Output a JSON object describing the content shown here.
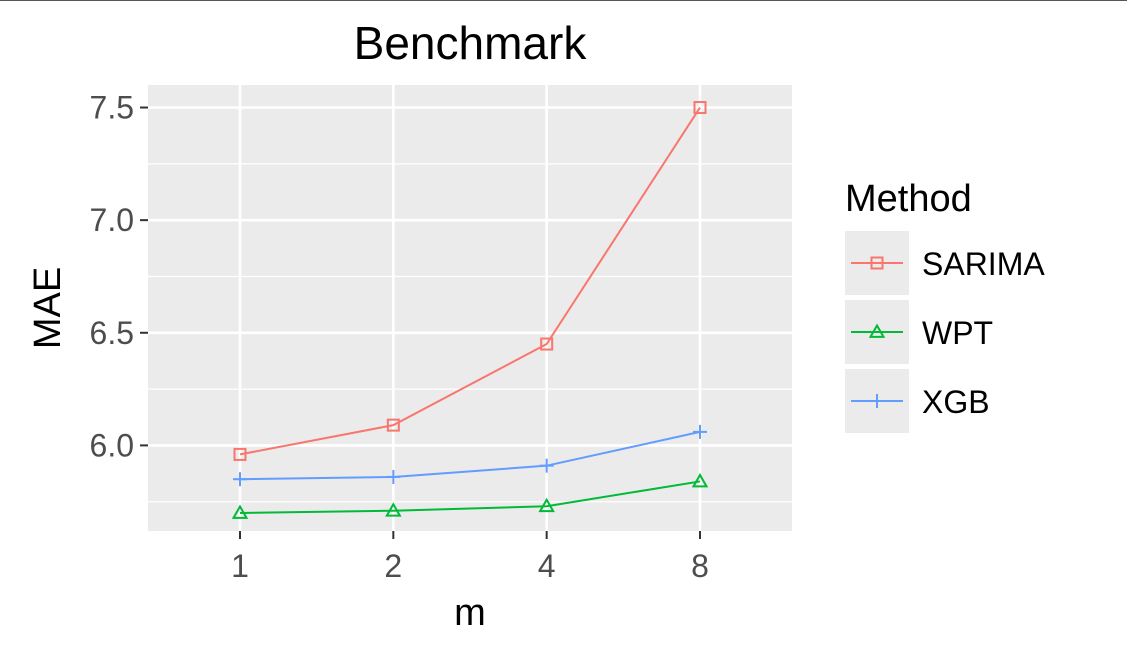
{
  "chart_data": {
    "type": "line",
    "title": "Benchmark",
    "xlabel": "m",
    "ylabel": "MAE",
    "x_scale": "discrete",
    "categories": [
      "1",
      "2",
      "4",
      "8"
    ],
    "ylim": [
      5.62,
      7.6
    ],
    "yticks": [
      "6.0",
      "6.5",
      "7.0",
      "7.5"
    ],
    "ytick_values": [
      6.0,
      6.5,
      7.0,
      7.5
    ],
    "grid": true,
    "legend": {
      "title": "Method",
      "position": "right"
    },
    "series": [
      {
        "name": "SARIMA",
        "color": "#F8766D",
        "marker": "square",
        "values": [
          5.96,
          6.09,
          6.45,
          7.5
        ]
      },
      {
        "name": "WPT",
        "color": "#00BA38",
        "marker": "triangle",
        "values": [
          5.7,
          5.71,
          5.73,
          5.84
        ]
      },
      {
        "name": "XGB",
        "color": "#619CFF",
        "marker": "plus",
        "values": [
          5.85,
          5.86,
          5.91,
          6.06
        ]
      }
    ]
  }
}
